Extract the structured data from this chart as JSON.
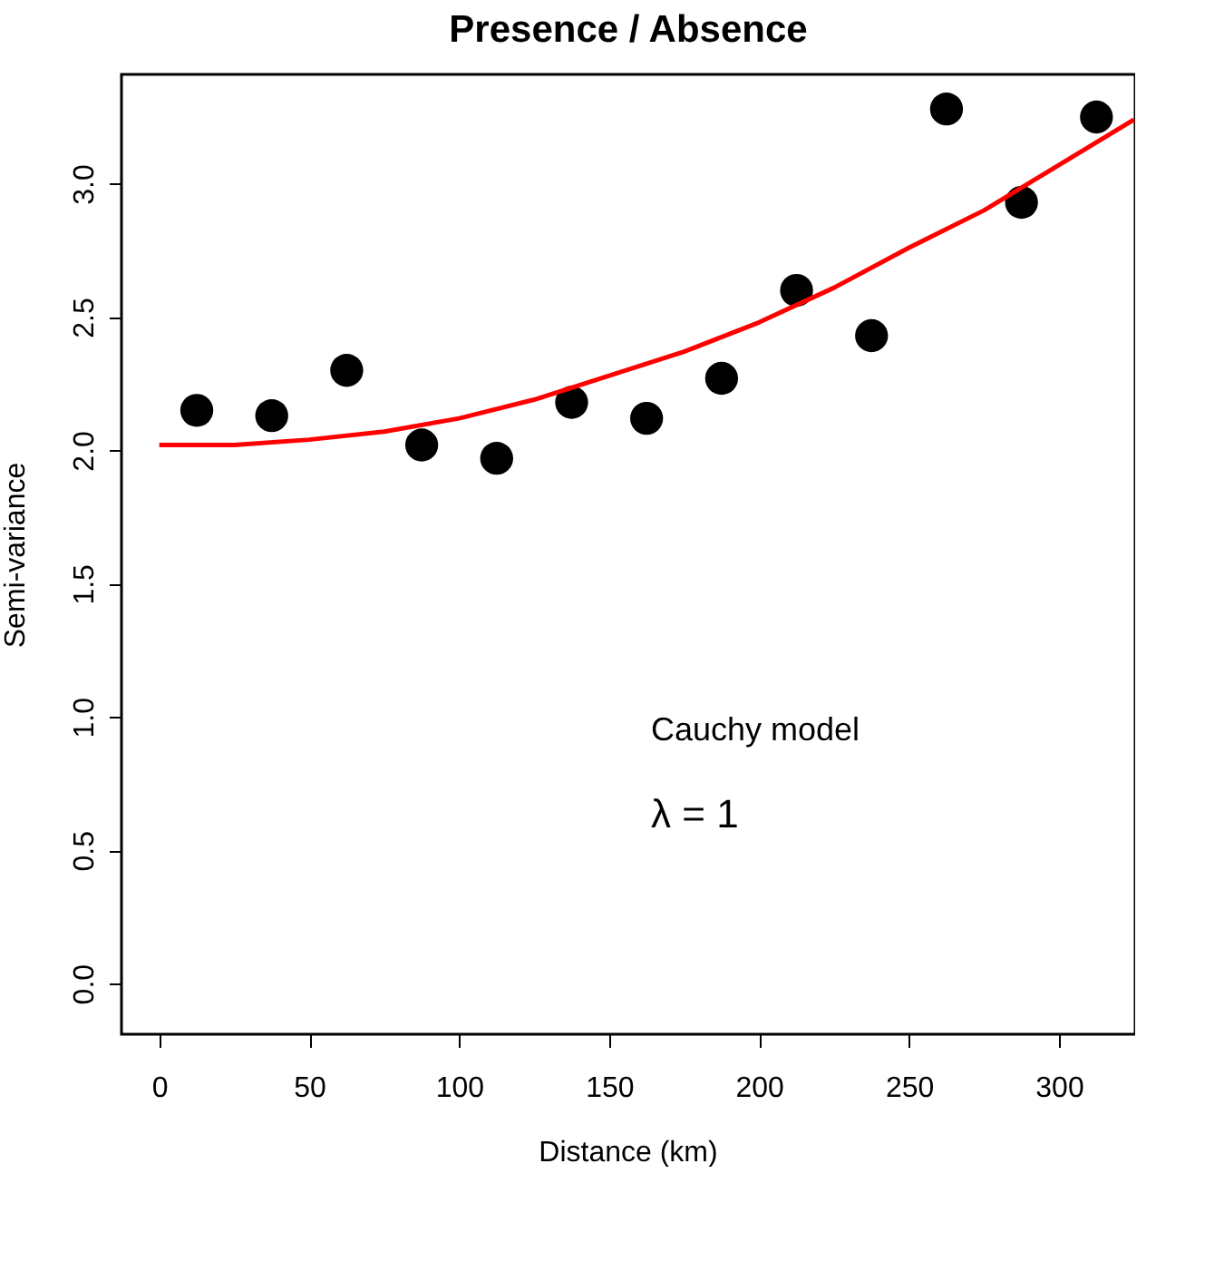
{
  "chart_data": {
    "type": "scatter",
    "title": "Presence / Absence",
    "xlabel": "Distance (km)",
    "ylabel": "Semi-variance",
    "xlim": [
      -12.6,
      325.4
    ],
    "ylim": [
      -0.19,
      3.41
    ],
    "xticks": [
      0,
      50,
      100,
      150,
      200,
      250,
      300
    ],
    "yticks": [
      {
        "value": 0,
        "label": "0.0"
      },
      0.5,
      {
        "value": 1,
        "label": "1.0"
      },
      1.5,
      {
        "value": 2,
        "label": "2.0"
      },
      2.5,
      {
        "value": 3,
        "label": "3.0"
      }
    ],
    "grid": false,
    "annotations": [
      "Cauchy model",
      "λ = 1"
    ],
    "series": [
      {
        "marker": "circle",
        "color": "#000000",
        "x": [
          12.5,
          37.5,
          62.5,
          87.5,
          112.5,
          137.5,
          162.5,
          187.5,
          212.5,
          237.5,
          262.5,
          287.5,
          312.5
        ],
        "values": [
          2.15,
          2.13,
          2.3,
          2.02,
          1.97,
          2.18,
          2.12,
          2.27,
          2.6,
          2.43,
          3.28,
          2.93,
          3.25
        ]
      },
      {
        "type": "line",
        "color": "#ff0000",
        "line_style": "solid",
        "x": [
          0,
          25,
          50,
          75,
          100,
          125,
          150,
          175,
          200,
          225,
          250,
          275,
          300,
          325
        ],
        "values": [
          2.02,
          2.02,
          2.04,
          2.07,
          2.12,
          2.19,
          2.28,
          2.37,
          2.48,
          2.61,
          2.76,
          2.9,
          3.07,
          3.24
        ]
      }
    ]
  }
}
